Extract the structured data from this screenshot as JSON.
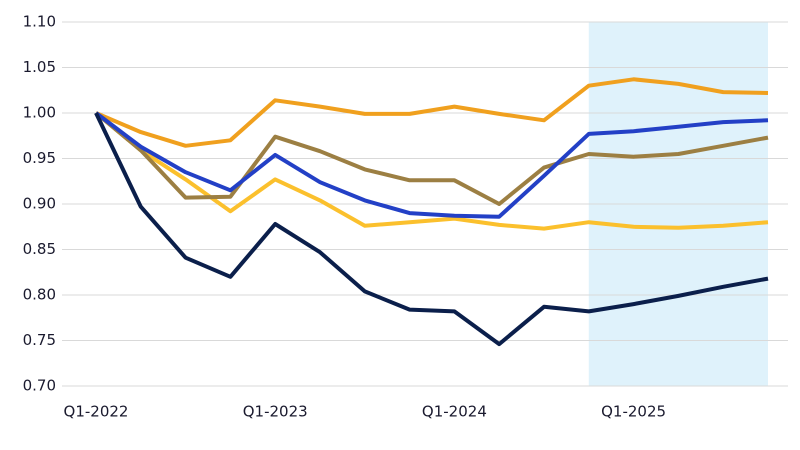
{
  "chart_data": {
    "type": "line",
    "categories": [
      "Q1-2022",
      null,
      null,
      null,
      "Q1-2023",
      null,
      null,
      null,
      "Q1-2024",
      null,
      null,
      null,
      "Q1-2025",
      null,
      null,
      null
    ],
    "series": [
      {
        "color": "#fbc02d",
        "values": [
          1.0,
          0.959,
          0.927,
          0.892,
          0.927,
          0.904,
          0.876,
          0.88,
          0.884,
          0.877,
          0.873,
          0.88,
          0.875,
          0.874,
          0.876,
          0.88
        ]
      },
      {
        "color": "#9c7f43",
        "values": [
          1.0,
          0.959,
          0.907,
          0.908,
          0.974,
          0.958,
          0.938,
          0.926,
          0.926,
          0.9,
          0.94,
          0.955,
          0.952,
          0.955,
          0.964,
          0.973
        ]
      },
      {
        "color": "#f0a01e",
        "values": [
          1.0,
          0.979,
          0.964,
          0.97,
          1.014,
          1.007,
          0.999,
          0.999,
          1.007,
          0.999,
          0.992,
          1.03,
          1.037,
          1.032,
          1.023,
          1.022
        ]
      },
      {
        "color": "#2340c6",
        "values": [
          1.0,
          0.963,
          0.935,
          0.915,
          0.954,
          0.924,
          0.904,
          0.89,
          0.887,
          0.886,
          0.931,
          0.977,
          0.98,
          0.985,
          0.99,
          0.992
        ]
      },
      {
        "color": "#0b1f4b",
        "values": [
          1.0,
          0.897,
          0.841,
          0.82,
          0.878,
          0.847,
          0.804,
          0.784,
          0.782,
          0.746,
          0.787,
          0.782,
          0.79,
          0.799,
          0.809,
          0.818
        ]
      }
    ],
    "highlight": {
      "from": 11,
      "to": 15,
      "color": "#dff2fb"
    },
    "ylim": [
      0.7,
      1.1
    ],
    "yticks": [
      {
        "value": 0.7,
        "label": "0.70"
      },
      0.75,
      {
        "value": 0.8,
        "label": "0.80"
      },
      0.85,
      {
        "value": 0.9,
        "label": "0.90"
      },
      0.95,
      {
        "value": 1.0,
        "label": "1.00"
      },
      1.05,
      {
        "value": 1.1,
        "label": "1.10"
      }
    ],
    "grid": true
  }
}
